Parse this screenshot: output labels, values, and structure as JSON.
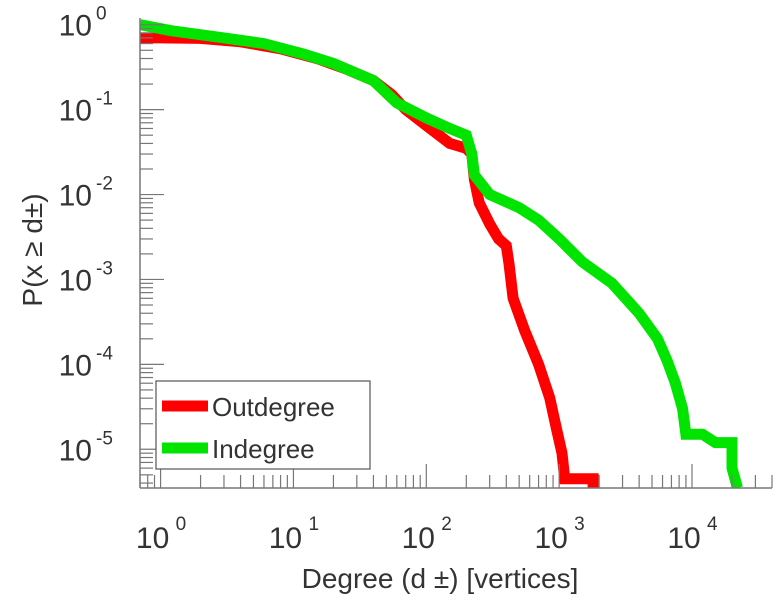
{
  "chart_data": {
    "type": "line",
    "title": "",
    "xlabel": "Degree (d ±) [vertices]",
    "ylabel": "P(x ≥ d±)",
    "xscale": "log",
    "yscale": "log",
    "xlim": [
      0.7,
      40000
    ],
    "ylim": [
      3.5e-06,
      1.2
    ],
    "grid": false,
    "legend_position": "bottom-left",
    "x_ticks": [
      {
        "value": 1,
        "base": "10",
        "exp": "0"
      },
      {
        "value": 10,
        "base": "10",
        "exp": "1"
      },
      {
        "value": 100,
        "base": "10",
        "exp": "2"
      },
      {
        "value": 1000,
        "base": "10",
        "exp": "3"
      },
      {
        "value": 10000,
        "base": "10",
        "exp": "4"
      }
    ],
    "y_ticks": [
      {
        "value": 1,
        "base": "10",
        "exp": "0"
      },
      {
        "value": 0.1,
        "base": "10",
        "exp": "-1"
      },
      {
        "value": 0.01,
        "base": "10",
        "exp": "-2"
      },
      {
        "value": 0.001,
        "base": "10",
        "exp": "-3"
      },
      {
        "value": 0.0001,
        "base": "10",
        "exp": "-4"
      },
      {
        "value": 1e-05,
        "base": "10",
        "exp": "-5"
      }
    ],
    "series": [
      {
        "name": "Outdegree",
        "color": "#ff0000",
        "points": [
          [
            0.7,
            0.7
          ],
          [
            1,
            0.7
          ],
          [
            2,
            0.69
          ],
          [
            4,
            0.63
          ],
          [
            8,
            0.52
          ],
          [
            15,
            0.4
          ],
          [
            25,
            0.3
          ],
          [
            40,
            0.22
          ],
          [
            55,
            0.15
          ],
          [
            70,
            0.1
          ],
          [
            100,
            0.065
          ],
          [
            150,
            0.04
          ],
          [
            200,
            0.035
          ],
          [
            220,
            0.03
          ],
          [
            230,
            0.015
          ],
          [
            250,
            0.008
          ],
          [
            300,
            0.0045
          ],
          [
            350,
            0.003
          ],
          [
            400,
            0.0025
          ],
          [
            420,
            0.0015
          ],
          [
            450,
            0.0006
          ],
          [
            550,
            0.00025
          ],
          [
            700,
            0.0001
          ],
          [
            850,
            4e-05
          ],
          [
            950,
            1.8e-05
          ],
          [
            1050,
            9e-06
          ],
          [
            1100,
            4.5e-06
          ],
          [
            1800,
            4.5e-06
          ],
          [
            1800,
            3.5e-06
          ]
        ]
      },
      {
        "name": "Indegree",
        "color": "#00e400",
        "points": [
          [
            0.7,
            1
          ],
          [
            1.2,
            0.85
          ],
          [
            3,
            0.7
          ],
          [
            6,
            0.6
          ],
          [
            12,
            0.45
          ],
          [
            20,
            0.35
          ],
          [
            40,
            0.22
          ],
          [
            60,
            0.12
          ],
          [
            100,
            0.08
          ],
          [
            150,
            0.06
          ],
          [
            200,
            0.05
          ],
          [
            220,
            0.03
          ],
          [
            230,
            0.017
          ],
          [
            300,
            0.01
          ],
          [
            500,
            0.007
          ],
          [
            700,
            0.005
          ],
          [
            1000,
            0.003
          ],
          [
            1500,
            0.0016
          ],
          [
            2500,
            0.0009
          ],
          [
            4000,
            0.0004
          ],
          [
            5500,
            0.0002
          ],
          [
            6500,
            0.00011
          ],
          [
            7500,
            6e-05
          ],
          [
            8500,
            3e-05
          ],
          [
            9000,
            1.5e-05
          ],
          [
            12000,
            1.5e-05
          ],
          [
            15000,
            1.2e-05
          ],
          [
            20000,
            1.2e-05
          ],
          [
            20000,
            6e-06
          ],
          [
            22000,
            3.5e-06
          ]
        ]
      }
    ]
  }
}
